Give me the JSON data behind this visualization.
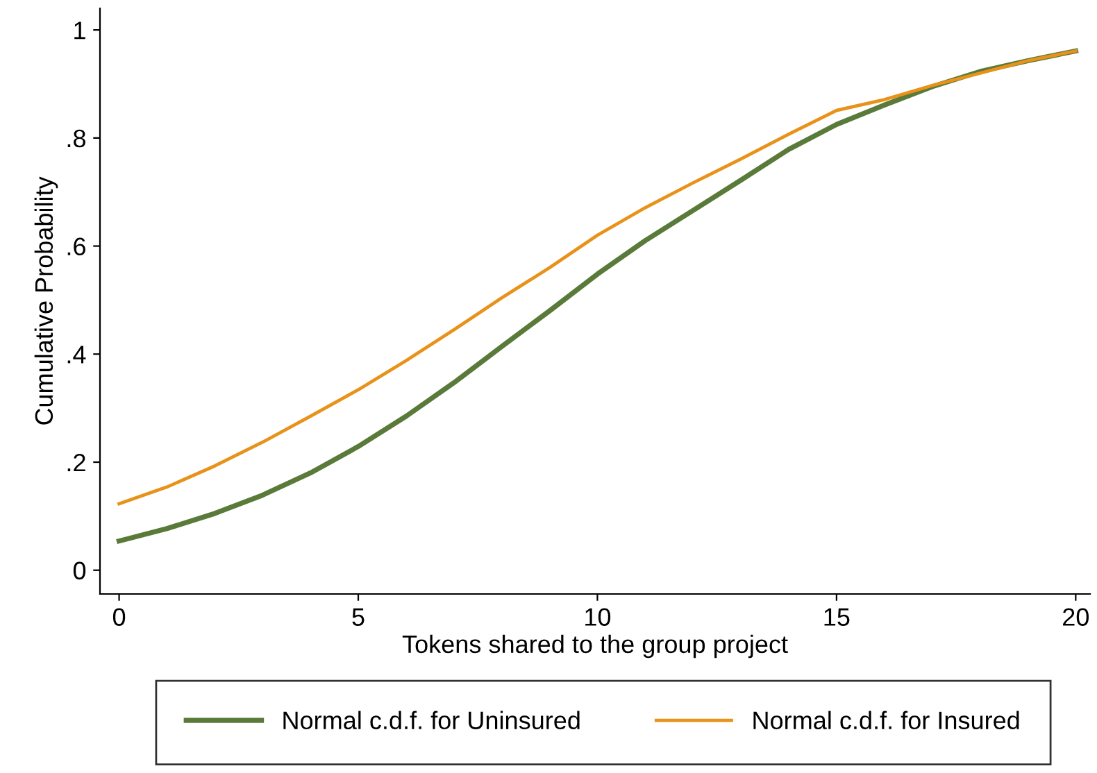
{
  "chart_data": {
    "type": "line",
    "xlabel": "Tokens shared to the group project",
    "ylabel": "Cumulative Probability",
    "x": [
      0,
      1,
      2,
      3,
      4,
      5,
      6,
      7,
      8,
      9,
      10,
      11,
      12,
      13,
      14,
      15,
      16,
      17,
      18,
      19,
      20
    ],
    "series": [
      {
        "name": "Normal c.d.f. for Uninsured",
        "color": "#5a7a3a",
        "values": [
          0.054,
          0.077,
          0.105,
          0.139,
          0.18,
          0.229,
          0.285,
          0.347,
          0.414,
          0.48,
          0.548,
          0.61,
          0.666,
          0.722,
          0.779,
          0.825,
          0.861,
          0.895,
          0.923,
          0.943,
          0.961
        ]
      },
      {
        "name": "Normal c.d.f. for Insured",
        "color": "#e8921a",
        "values": [
          0.123,
          0.154,
          0.193,
          0.237,
          0.285,
          0.334,
          0.388,
          0.445,
          0.504,
          0.56,
          0.62,
          0.671,
          0.717,
          0.761,
          0.807,
          0.851,
          0.871,
          0.897,
          0.92,
          0.943,
          0.961
        ]
      }
    ],
    "xlim": [
      -0.4,
      20.3
    ],
    "xticks": [
      0,
      5,
      10,
      15,
      20
    ],
    "ylim": [
      -0.044,
      1.04
    ],
    "yticks": [
      0,
      {
        "value": 0.2,
        "label": ".2"
      },
      {
        "value": 0.4,
        "label": ".4"
      },
      {
        "value": 0.6,
        "label": ".6"
      },
      {
        "value": 0.8,
        "label": ".8"
      },
      1
    ],
    "grid": false,
    "legend": "bottom",
    "marker": "none",
    "line_style": "solid"
  }
}
